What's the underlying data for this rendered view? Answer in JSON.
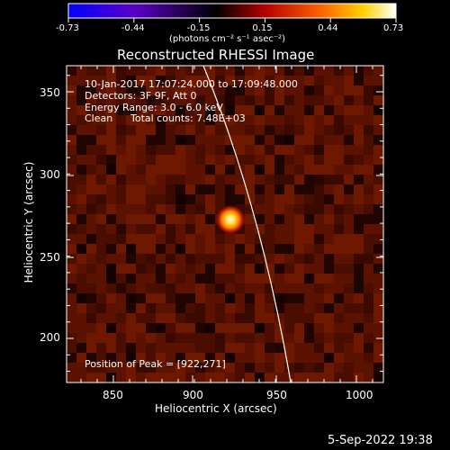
{
  "colorbar": {
    "tick_labels": [
      "-0.73",
      "-0.44",
      "-0.15",
      "0.15",
      "0.44",
      "0.73"
    ],
    "unit_label": "(photons cm⁻² s⁻¹ asec⁻²)",
    "colors": [
      "#0000ff",
      "#5a00c8",
      "#000000",
      "#b40000",
      "#ff6a00",
      "#ffd200",
      "#ffffff"
    ]
  },
  "image": {
    "title": "Reconstructed RHESSI Image",
    "time_range": "10-Jan-2017 17:07:24.000 to 17:09:48.000",
    "detectors": "Detectors: 3F 9F, Att 0",
    "energy_range": "Energy Range: 3.0 - 6.0 keV",
    "algorithm": "Clean",
    "total_counts": "Total counts: 7.48E+03",
    "peak_label": "Position of Peak = [922,271]",
    "peak": [
      922,
      271
    ]
  },
  "axes": {
    "xlabel": "Heliocentric X (arcsec)",
    "ylabel": "Heliocentric Y (arcsec)",
    "x_ticks": [
      "850",
      "900",
      "950",
      "1000"
    ],
    "y_ticks": [
      "200",
      "250",
      "300",
      "350"
    ]
  },
  "footer": {
    "timestamp": "5-Sep-2022 19:38"
  }
}
